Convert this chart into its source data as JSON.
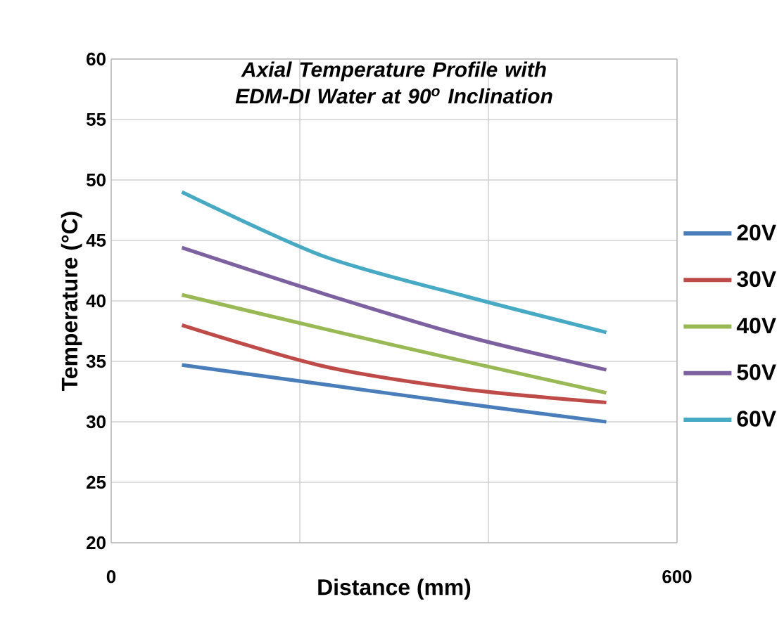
{
  "chart_data": {
    "type": "line",
    "title": "*Axial Temperature Profile with EDM-DI Water at 90$^{o}$ Inclination*",
    "xlabel": "Distance (mm)",
    "ylabel": "Temperature (°C)",
    "x": [
      75,
      225,
      375,
      525
    ],
    "series": [
      {
        "name": "20V",
        "color": "#4a7ebb",
        "values": [
          34.7,
          33.1,
          31.5,
          30.0
        ]
      },
      {
        "name": "30V",
        "color": "#be4b48",
        "values": [
          38.0,
          34.6,
          32.7,
          31.6
        ]
      },
      {
        "name": "40V",
        "color": "#98b954",
        "values": [
          40.5,
          37.7,
          35.0,
          32.4
        ]
      },
      {
        "name": "50V",
        "color": "#7d60a0",
        "values": [
          44.4,
          40.6,
          37.1,
          34.3
        ]
      },
      {
        "name": "60V",
        "color": "#46aac5",
        "values": [
          49.0,
          43.7,
          40.4,
          37.4
        ]
      }
    ],
    "xlim": [
      0,
      600
    ],
    "ylim": [
      20,
      60
    ],
    "xticks": [
      {
        "value": 0,
        "label": "0"
      },
      {
        "value": 200,
        "label": null
      },
      {
        "value": 400,
        "label": null
      },
      {
        "value": 600,
        "label": "600"
      }
    ],
    "yticks": [
      20,
      25,
      30,
      35,
      40,
      45,
      50,
      55,
      60
    ],
    "grid": true,
    "legend": "right"
  }
}
